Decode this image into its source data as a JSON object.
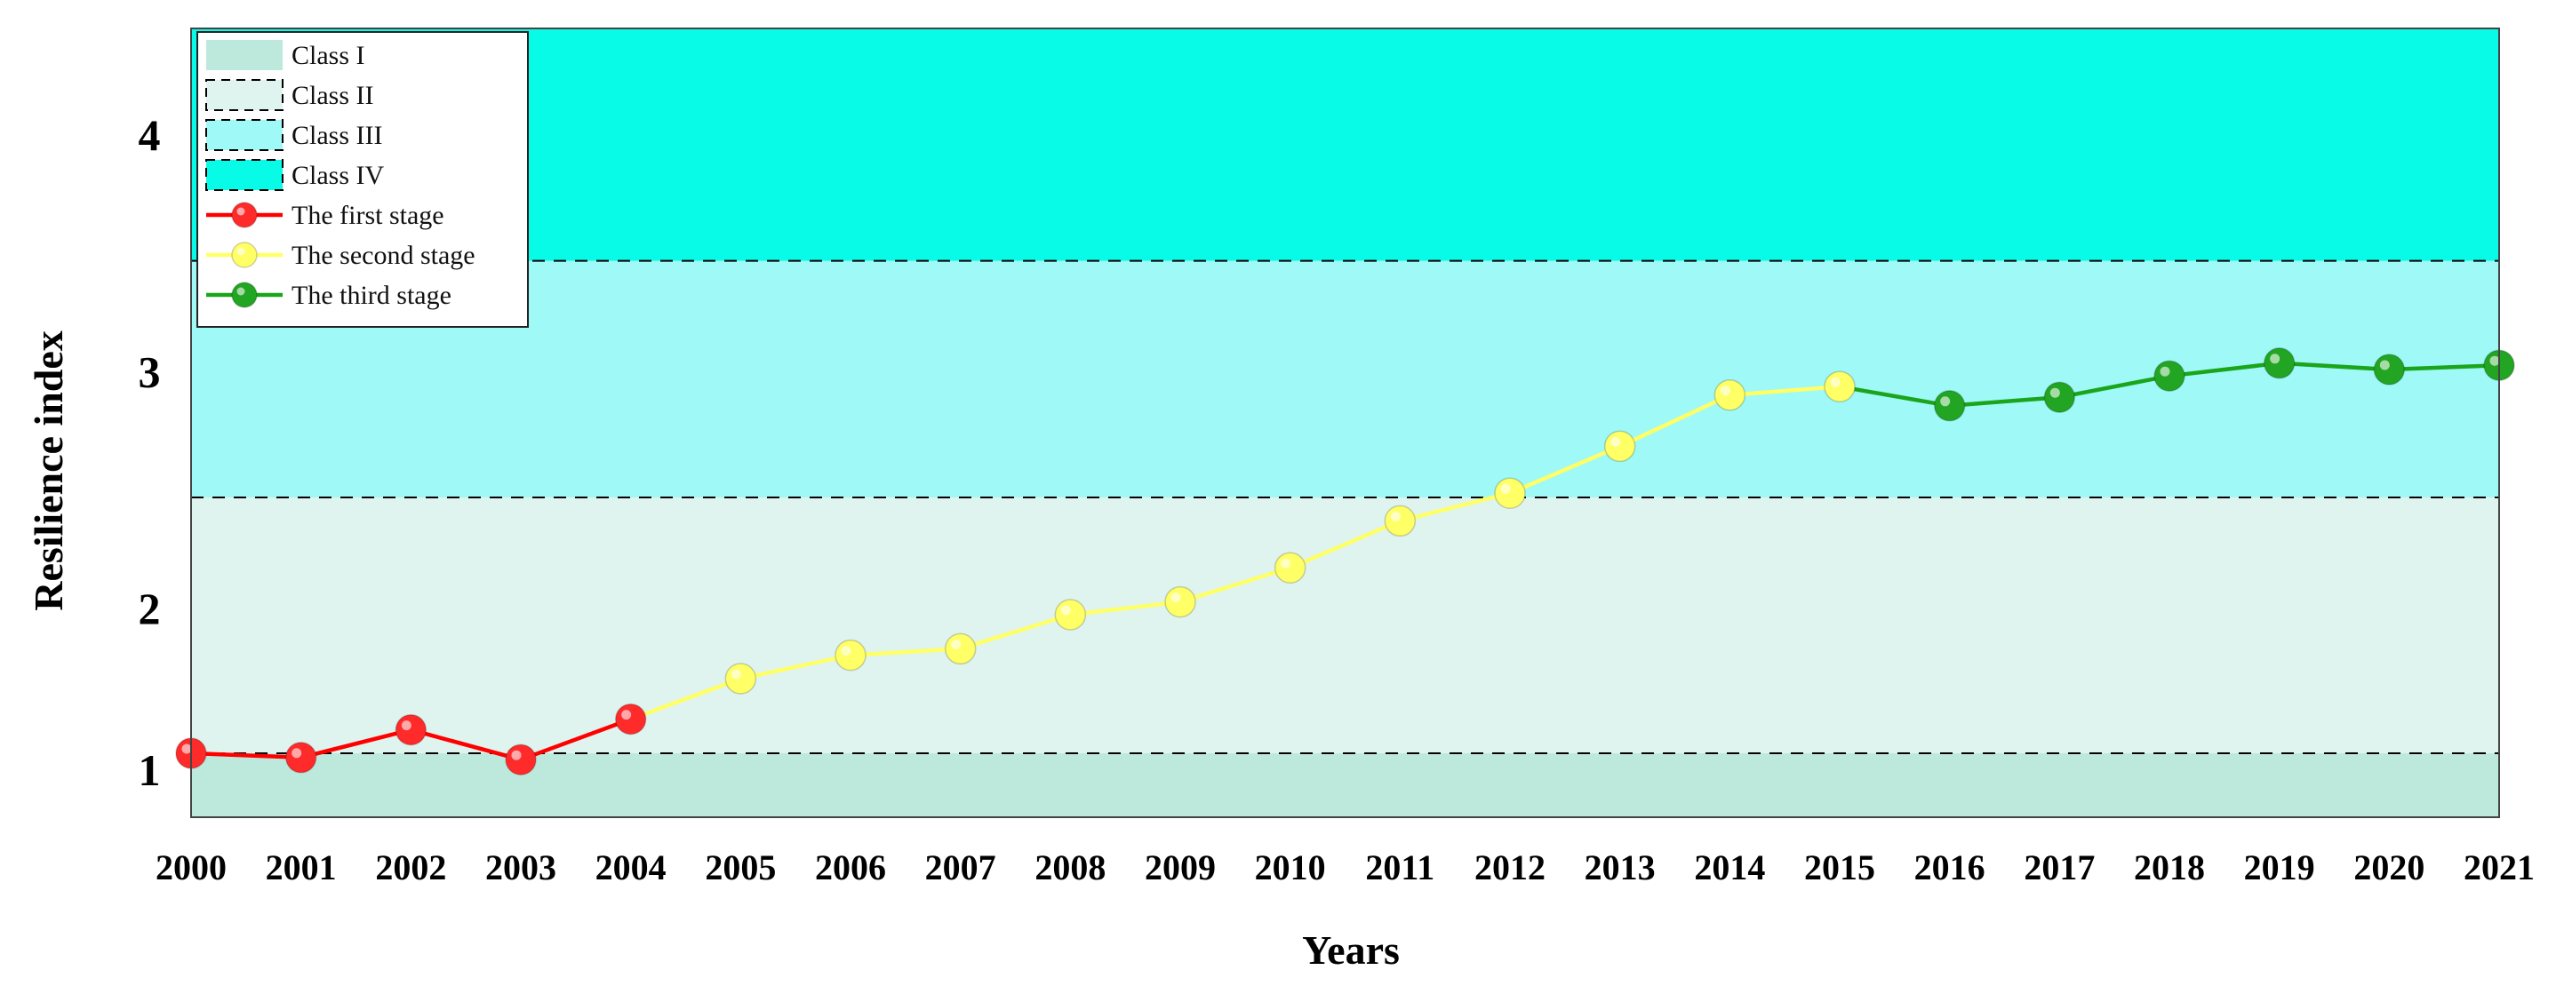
{
  "chart_data": {
    "type": "line",
    "xlabel": "Years",
    "ylabel": "Resilience index",
    "x": [
      "2000",
      "2001",
      "2002",
      "2003",
      "2004",
      "2005",
      "2006",
      "2007",
      "2008",
      "2009",
      "2010",
      "2011",
      "2012",
      "2013",
      "2014",
      "2015",
      "2016",
      "2017",
      "2018",
      "2019",
      "2020",
      "2021"
    ],
    "y_ticks": [
      "1",
      "2",
      "3",
      "4"
    ],
    "ylim": [
      0.85,
      4.55
    ],
    "bands": [
      {
        "name": "Class I",
        "range": [
          0.85,
          1.15
        ],
        "color": "#bde9dc"
      },
      {
        "name": "Class II",
        "range": [
          1.15,
          2.35
        ],
        "color": "#dff4ee"
      },
      {
        "name": "Class III",
        "range": [
          2.35,
          3.46
        ],
        "color": "#9ef9f7"
      },
      {
        "name": "Class IV",
        "range": [
          3.46,
          4.55
        ],
        "color": "#07fbe6"
      }
    ],
    "series": [
      {
        "name": "The first stage",
        "color": "#ff0000",
        "marker": "#ff2a2a",
        "points": [
          [
            "2000",
            1.15
          ],
          [
            "2001",
            1.13
          ],
          [
            "2002",
            1.26
          ],
          [
            "2003",
            1.12
          ],
          [
            "2004",
            1.31
          ]
        ]
      },
      {
        "name": "The second stage",
        "color": "#ffff66",
        "marker": "#ffff66",
        "points": [
          [
            "2004",
            1.31
          ],
          [
            "2005",
            1.5
          ],
          [
            "2006",
            1.61
          ],
          [
            "2007",
            1.64
          ],
          [
            "2008",
            1.8
          ],
          [
            "2009",
            1.86
          ],
          [
            "2010",
            2.02
          ],
          [
            "2011",
            2.24
          ],
          [
            "2012",
            2.37
          ],
          [
            "2013",
            2.59
          ],
          [
            "2014",
            2.83
          ],
          [
            "2015",
            2.87
          ]
        ]
      },
      {
        "name": "The third stage",
        "color": "#1ba51b",
        "marker": "#22a522",
        "points": [
          [
            "2015",
            2.87
          ],
          [
            "2016",
            2.78
          ],
          [
            "2017",
            2.82
          ],
          [
            "2018",
            2.92
          ],
          [
            "2019",
            2.98
          ],
          [
            "2020",
            2.95
          ],
          [
            "2021",
            2.97
          ]
        ]
      }
    ],
    "legend": {
      "position": "top-left",
      "entries": [
        "Class I",
        "Class II",
        "Class III",
        "Class IV",
        "The first stage",
        "The second stage",
        "The third stage"
      ]
    }
  }
}
